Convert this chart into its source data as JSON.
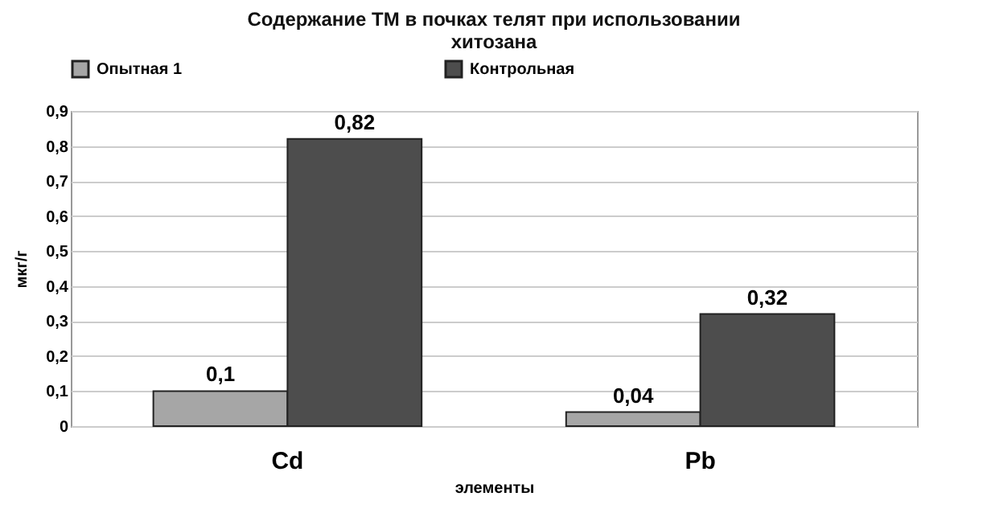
{
  "chart_data": {
    "type": "bar",
    "title": "Содержание ТМ в почках телят при использовании хитозана",
    "xlabel": "элементы",
    "ylabel": "мкг/г",
    "categories": [
      "Cd",
      "Pb"
    ],
    "series": [
      {
        "name": "Опытная 1",
        "color": "#a6a6a6",
        "values": [
          0.1,
          0.04
        ],
        "value_labels": [
          "0,1",
          "0,04"
        ]
      },
      {
        "name": "Контрольная",
        "color": "#4d4d4d",
        "values": [
          0.82,
          0.32
        ],
        "value_labels": [
          "0,82",
          "0,32"
        ]
      }
    ],
    "ylim": [
      0,
      0.9
    ],
    "yticks": [
      {
        "value": 0,
        "label": "0"
      },
      {
        "value": 0.1,
        "label": "0,1"
      },
      {
        "value": 0.2,
        "label": "0,2"
      },
      {
        "value": 0.3,
        "label": "0,3"
      },
      {
        "value": 0.4,
        "label": "0,4"
      },
      {
        "value": 0.5,
        "label": "0,5"
      },
      {
        "value": 0.6,
        "label": "0,6"
      },
      {
        "value": 0.7,
        "label": "0,7"
      },
      {
        "value": 0.8,
        "label": "0,8"
      },
      {
        "value": 0.9,
        "label": "0,9"
      }
    ],
    "grid": "y",
    "legend": "top"
  }
}
